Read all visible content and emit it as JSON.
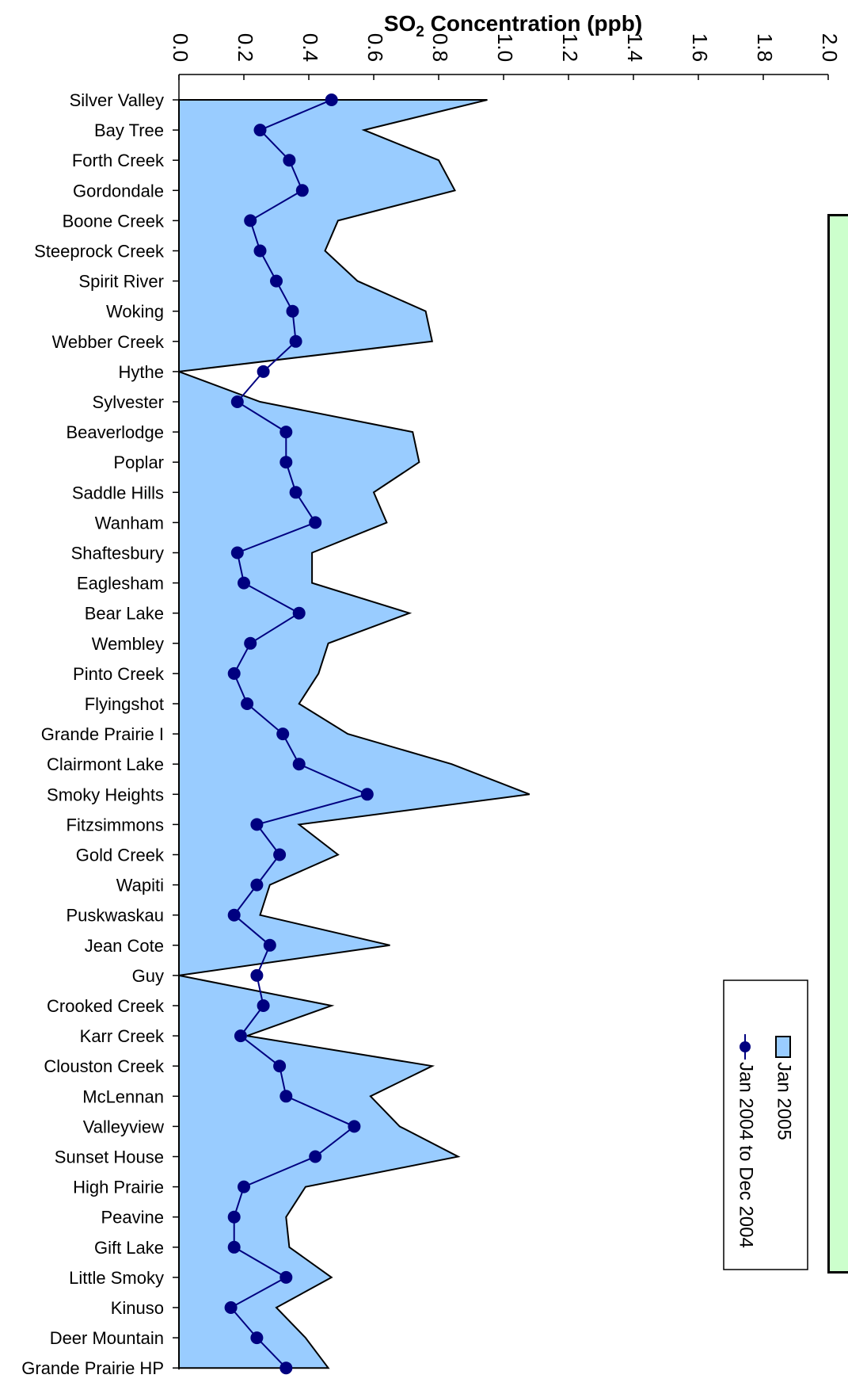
{
  "colors": {
    "area_fill": "#99ccff",
    "area_stroke": "#000000",
    "line_color": "#000080",
    "marker_color": "#000080",
    "note_panel_fill": "#ccffcc"
  },
  "chart_data": {
    "type": "area",
    "orientation": "horizontal",
    "title_main": "SO",
    "title_sub": "2",
    "title_rest": " Concentration  (ppb)",
    "xlim": [
      0,
      2.0
    ],
    "x_ticks": [
      "0.0",
      "0.2",
      "0.4",
      "0.6",
      "0.8",
      "1.0",
      "1.2",
      "1.4",
      "1.6",
      "1.8",
      "2.0"
    ],
    "tick_label_rotation": "vertical",
    "grid": false,
    "legend_position": "bottom-right, rotated",
    "categories": [
      "Silver Valley",
      "Bay Tree",
      "Forth Creek",
      "Gordondale",
      "Boone Creek",
      "Steeprock Creek",
      "Spirit River",
      "Woking",
      "Webber Creek",
      "Hythe",
      "Sylvester",
      "Beaverlodge",
      "Poplar",
      "Saddle Hills",
      "Wanham",
      "Shaftesbury",
      "Eaglesham",
      "Bear Lake",
      "Wembley",
      "Pinto Creek",
      "Flyingshot",
      "Grande Prairie I",
      "Clairmont Lake",
      "Smoky Heights",
      "Fitzsimmons",
      "Gold Creek",
      "Wapiti",
      "Puskwaskau",
      "Jean Cote",
      "Guy",
      "Crooked Creek",
      "Karr Creek",
      "Clouston Creek",
      "McLennan",
      "Valleyview",
      "Sunset House",
      "High Prairie",
      "Peavine",
      "Gift Lake",
      "Little Smoky",
      "Kinuso",
      "Deer Mountain",
      "Grande Prairie HP"
    ],
    "series": [
      {
        "name": "Jan 2005",
        "type": "area",
        "values": [
          0.95,
          0.57,
          0.8,
          0.85,
          0.49,
          0.45,
          0.55,
          0.76,
          0.78,
          0.0,
          0.25,
          0.72,
          0.74,
          0.6,
          0.64,
          0.41,
          0.41,
          0.71,
          0.46,
          0.43,
          0.37,
          0.52,
          0.84,
          1.08,
          0.37,
          0.49,
          0.28,
          0.25,
          0.65,
          0.0,
          0.47,
          0.21,
          0.78,
          0.59,
          0.68,
          0.86,
          0.39,
          0.33,
          0.34,
          0.47,
          0.3,
          0.39,
          0.46
        ]
      },
      {
        "name": "Jan 2004 to Dec 2004",
        "type": "line",
        "values": [
          0.47,
          0.25,
          0.34,
          0.38,
          0.22,
          0.25,
          0.3,
          0.35,
          0.36,
          0.26,
          0.18,
          0.33,
          0.33,
          0.36,
          0.42,
          0.18,
          0.2,
          0.37,
          0.22,
          0.17,
          0.21,
          0.32,
          0.37,
          0.58,
          0.24,
          0.31,
          0.24,
          0.17,
          0.28,
          0.24,
          0.26,
          0.19,
          0.31,
          0.33,
          0.54,
          0.42,
          0.2,
          0.17,
          0.17,
          0.33,
          0.16,
          0.24,
          0.33
        ]
      }
    ]
  }
}
